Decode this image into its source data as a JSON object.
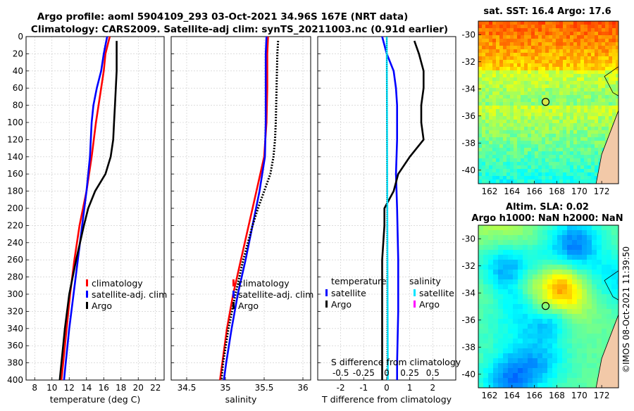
{
  "title": {
    "line1": "Argo profile: aoml 5904109_293 03-Oct-2021 34.96S 167E (NRT data)",
    "line2": "Climatology: CARS2009. Satellite-adj clim: synTS_20211003.nc (0.91d earlier)"
  },
  "colors": {
    "climatology": "#ff0000",
    "satellite": "#0000ff",
    "argo": "#000000",
    "sal_satellite": "#00e5ff",
    "sal_diff_magenta": "#ff00ff"
  },
  "footer": "©IMOS 08-Oct-2021 11:39:50",
  "chart_data": [
    {
      "type": "line",
      "name": "temperature-profile",
      "xlabel": "temperature (deg C)",
      "ylabel": "",
      "xlim": [
        7,
        23
      ],
      "ylim": [
        0,
        400
      ],
      "xticks": [
        8,
        10,
        12,
        14,
        16,
        18,
        20,
        22
      ],
      "yticks": [
        0,
        20,
        40,
        60,
        80,
        100,
        120,
        140,
        160,
        180,
        200,
        220,
        240,
        260,
        280,
        300,
        320,
        340,
        360,
        380,
        400
      ],
      "legend": [
        "climatology",
        "satellite-adj. clim",
        "Argo"
      ],
      "series": [
        {
          "name": "climatology",
          "color": "#ff0000",
          "depth": [
            0,
            20,
            40,
            60,
            80,
            100,
            140,
            180,
            220,
            260,
            300,
            340,
            380,
            400
          ],
          "values": [
            16.7,
            16.2,
            16.0,
            15.7,
            15.4,
            15.1,
            14.6,
            14.0,
            13.2,
            12.6,
            12.1,
            11.7,
            11.3,
            11.1
          ]
        },
        {
          "name": "satellite-adj. clim",
          "color": "#0000ff",
          "depth": [
            0,
            20,
            40,
            60,
            80,
            100,
            140,
            180,
            220,
            260,
            300,
            340,
            380,
            400
          ],
          "values": [
            16.4,
            16.0,
            15.7,
            15.2,
            14.8,
            14.6,
            14.4,
            14.0,
            13.5,
            13.0,
            12.5,
            12.0,
            11.6,
            11.4
          ]
        },
        {
          "name": "Argo",
          "color": "#000000",
          "depth": [
            5,
            20,
            40,
            60,
            80,
            100,
            120,
            140,
            160,
            180,
            200,
            220,
            260,
            300,
            340,
            380,
            400
          ],
          "values": [
            17.5,
            17.5,
            17.5,
            17.4,
            17.3,
            17.2,
            17.1,
            16.8,
            16.2,
            15.0,
            14.2,
            13.7,
            12.8,
            12.0,
            11.5,
            11.1,
            10.9
          ]
        }
      ]
    },
    {
      "type": "line",
      "name": "salinity-profile",
      "xlabel": "salinity",
      "ylabel": "",
      "xlim": [
        34.3,
        36.1
      ],
      "ylim": [
        0,
        400
      ],
      "xticks": [
        "34.5",
        "35",
        "35.5",
        "36"
      ],
      "legend": [
        "climatology",
        "satellite-adj. clim",
        "Argo"
      ],
      "series": [
        {
          "name": "climatology",
          "color": "#ff0000",
          "depth": [
            0,
            20,
            60,
            100,
            140,
            180,
            220,
            260,
            300,
            340,
            380,
            400
          ],
          "values": [
            35.55,
            35.54,
            35.54,
            35.53,
            35.5,
            35.4,
            35.3,
            35.2,
            35.1,
            35.02,
            34.96,
            34.93
          ]
        },
        {
          "name": "satellite-adj. clim",
          "color": "#0000ff",
          "depth": [
            0,
            20,
            60,
            100,
            140,
            180,
            220,
            260,
            300,
            340,
            380,
            400
          ],
          "values": [
            35.53,
            35.52,
            35.52,
            35.52,
            35.51,
            35.44,
            35.35,
            35.26,
            35.16,
            35.08,
            35.01,
            34.98
          ]
        },
        {
          "name": "Argo",
          "color": "#000000",
          "depth": [
            5,
            20,
            60,
            100,
            120,
            140,
            160,
            180,
            200,
            220,
            260,
            300,
            340,
            380,
            400
          ],
          "values": [
            35.68,
            35.67,
            35.66,
            35.65,
            35.64,
            35.62,
            35.58,
            35.5,
            35.42,
            35.35,
            35.23,
            35.13,
            35.04,
            34.97,
            34.95
          ]
        }
      ]
    },
    {
      "type": "line",
      "name": "difference-profile",
      "xlabel": "T difference from climatology",
      "top_label": "S difference from climatology",
      "xlim": [
        -3,
        3
      ],
      "ylim": [
        0,
        400
      ],
      "xticks": [
        "-2",
        "-1",
        "0",
        "1",
        "2"
      ],
      "top_ticks": [
        "-0.5",
        "-0.25",
        "0",
        "0.25",
        "0.5"
      ],
      "legend_temperature_title": "temperature",
      "legend_salinity_title": "salinity",
      "legend_temperature": [
        "satellite",
        "Argo"
      ],
      "legend_salinity": [
        "satellite",
        "Argo"
      ],
      "series": [
        {
          "name": "T satellite",
          "color": "#0000ff",
          "depth": [
            0,
            20,
            40,
            60,
            80,
            120,
            160,
            200,
            260,
            320,
            380,
            400
          ],
          "values": [
            -0.2,
            0.0,
            0.3,
            0.4,
            0.45,
            0.45,
            0.4,
            0.45,
            0.5,
            0.5,
            0.45,
            0.45
          ]
        },
        {
          "name": "T Argo",
          "color": "#000000",
          "depth": [
            5,
            20,
            40,
            60,
            80,
            100,
            120,
            140,
            160,
            180,
            200,
            220,
            260,
            300,
            340,
            380,
            400
          ],
          "values": [
            1.2,
            1.4,
            1.6,
            1.6,
            1.5,
            1.5,
            1.6,
            1.0,
            0.5,
            0.3,
            -0.1,
            -0.1,
            -0.2,
            -0.2,
            -0.2,
            -0.2,
            -0.2
          ]
        },
        {
          "name": "S satellite",
          "color": "#00e5ff",
          "depth": [
            0,
            400
          ],
          "values": [
            0.0,
            0.05
          ]
        }
      ]
    },
    {
      "type": "heatmap",
      "name": "sat-sst-map",
      "title": "sat. SST: 16.4 Argo: 17.6",
      "xlim": [
        161,
        173.5
      ],
      "ylim": [
        -41,
        -29
      ],
      "xticks": [
        "162",
        "164",
        "166",
        "168",
        "170",
        "172"
      ],
      "yticks": [
        "-30",
        "-32",
        "-34",
        "-36",
        "-38",
        "-40"
      ],
      "marker": {
        "lon": 167,
        "lat": -34.96
      }
    },
    {
      "type": "heatmap",
      "name": "altim-sla-map",
      "title_line1": "Altim. SLA: 0.02",
      "title_line2": "Argo h1000: NaN h2000: NaN",
      "xlim": [
        161,
        173.5
      ],
      "ylim": [
        -41,
        -29
      ],
      "xticks": [
        "162",
        "164",
        "166",
        "168",
        "170",
        "172"
      ],
      "yticks": [
        "-30",
        "-32",
        "-34",
        "-36",
        "-38",
        "-40"
      ],
      "marker": {
        "lon": 167,
        "lat": -34.96
      }
    }
  ]
}
